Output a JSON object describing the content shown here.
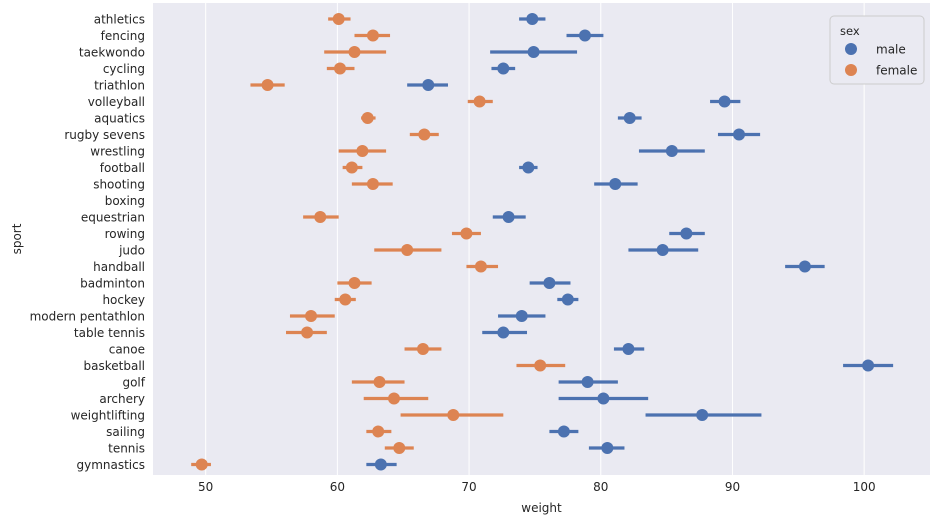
{
  "chart_data": {
    "type": "pointplot",
    "orientation": "horizontal",
    "xlabel": "weight",
    "ylabel": "sport",
    "xlim": [
      46,
      105
    ],
    "xticks": [
      50,
      60,
      70,
      80,
      90,
      100
    ],
    "grid": "vertical",
    "legend": {
      "title": "sex",
      "placement": "top-right"
    },
    "categories": [
      "athletics",
      "fencing",
      "taekwondo",
      "cycling",
      "triathlon",
      "volleyball",
      "aquatics",
      "rugby sevens",
      "wrestling",
      "football",
      "shooting",
      "boxing",
      "equestrian",
      "rowing",
      "judo",
      "handball",
      "badminton",
      "hockey",
      "modern pentathlon",
      "table tennis",
      "canoe",
      "basketball",
      "golf",
      "archery",
      "weightlifting",
      "sailing",
      "tennis",
      "gymnastics"
    ],
    "series": [
      {
        "name": "male",
        "color": "#4c72b0",
        "values": [
          74.8,
          78.8,
          74.9,
          72.6,
          66.9,
          89.4,
          82.2,
          90.5,
          85.4,
          74.5,
          81.1,
          null,
          73.0,
          86.5,
          84.7,
          95.5,
          76.1,
          77.5,
          74.0,
          72.6,
          82.1,
          100.3,
          79.0,
          80.2,
          87.7,
          77.2,
          80.5,
          63.3
        ],
        "ci_low": [
          73.8,
          77.4,
          71.6,
          71.7,
          65.3,
          88.3,
          81.3,
          88.9,
          82.9,
          73.8,
          79.5,
          null,
          71.8,
          85.2,
          82.1,
          94.0,
          74.6,
          76.7,
          72.2,
          71.0,
          81.0,
          98.4,
          76.8,
          76.8,
          83.4,
          76.1,
          79.1,
          62.2
        ],
        "ci_high": [
          75.8,
          80.2,
          78.2,
          73.5,
          68.4,
          90.6,
          83.1,
          92.1,
          87.9,
          75.2,
          82.8,
          null,
          74.3,
          87.9,
          87.4,
          97.0,
          77.7,
          78.3,
          75.8,
          74.4,
          83.3,
          102.2,
          81.3,
          83.6,
          92.2,
          78.3,
          81.8,
          64.5
        ]
      },
      {
        "name": "female",
        "color": "#dd8452",
        "values": [
          60.1,
          62.7,
          61.3,
          60.2,
          54.7,
          70.8,
          62.3,
          66.6,
          61.9,
          61.1,
          62.7,
          null,
          58.7,
          69.8,
          65.3,
          70.9,
          61.3,
          60.6,
          58.0,
          57.7,
          66.5,
          75.4,
          63.2,
          64.3,
          68.8,
          63.1,
          64.7,
          49.7
        ],
        "ci_low": [
          59.3,
          61.3,
          59.0,
          59.2,
          53.4,
          69.9,
          61.8,
          65.5,
          60.1,
          60.4,
          61.1,
          null,
          57.4,
          68.7,
          62.8,
          69.8,
          60.0,
          59.8,
          56.4,
          56.1,
          65.1,
          73.6,
          61.1,
          62.0,
          64.8,
          62.2,
          63.6,
          48.9
        ],
        "ci_high": [
          61.0,
          64.0,
          63.7,
          61.3,
          56.0,
          71.8,
          62.9,
          67.7,
          63.7,
          61.9,
          64.2,
          null,
          60.1,
          70.9,
          67.9,
          72.2,
          62.6,
          61.4,
          59.8,
          59.2,
          67.9,
          77.3,
          65.1,
          66.9,
          72.6,
          64.1,
          65.8,
          50.4
        ]
      }
    ]
  }
}
